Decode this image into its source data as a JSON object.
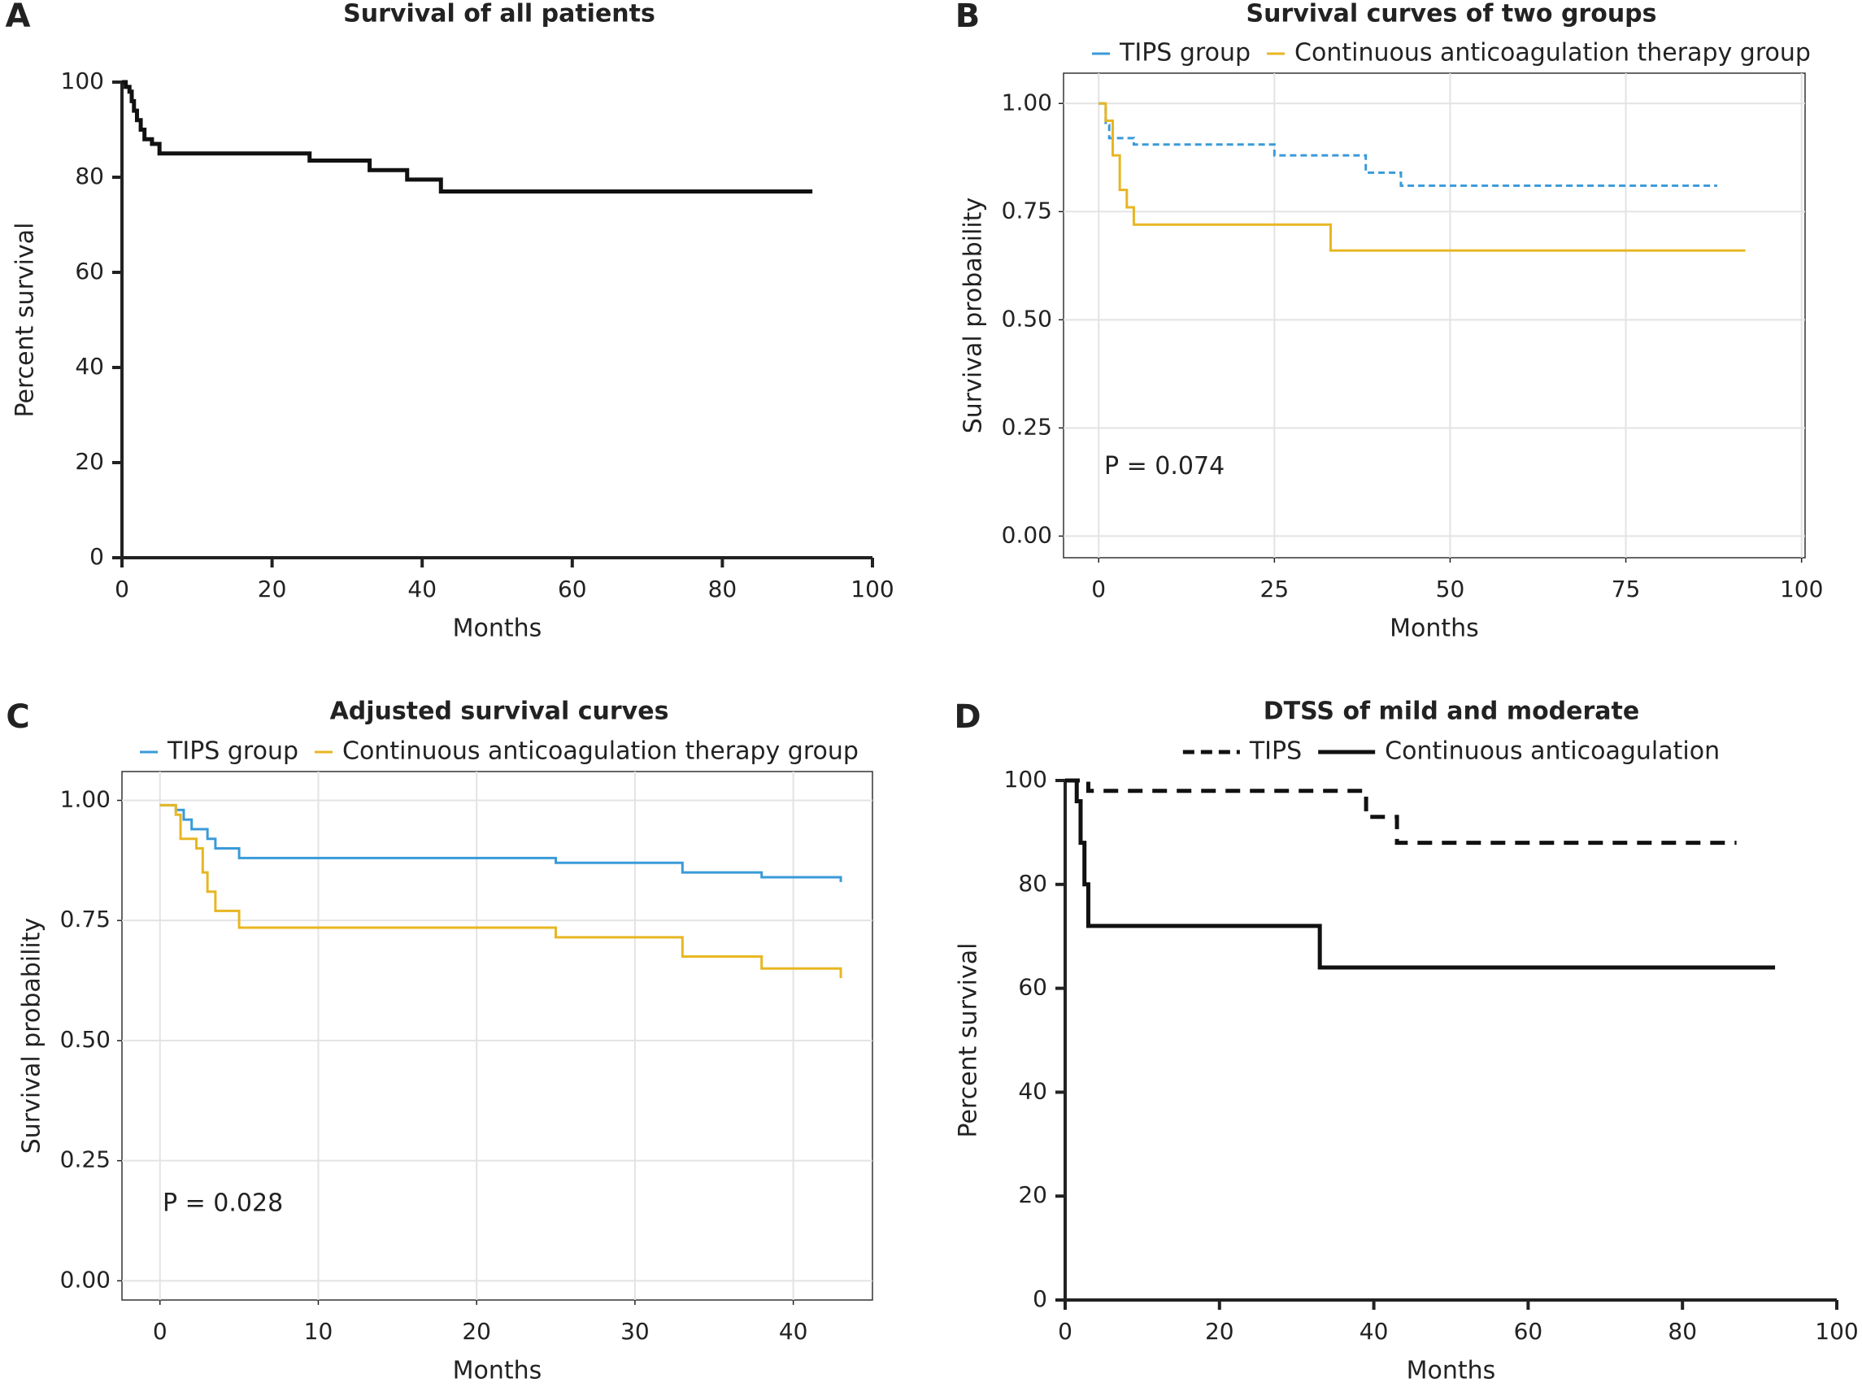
{
  "chart_data": [
    {
      "type": "line",
      "step": true,
      "panel_label": "A",
      "title": "Survival of all patients",
      "xlabel": "Months",
      "ylabel": "Percent survival",
      "frame": false,
      "grid": false,
      "xlim": [
        0,
        100
      ],
      "ylim": [
        0,
        100
      ],
      "xticks": [
        0,
        20,
        40,
        60,
        80,
        100
      ],
      "yticks": [
        0,
        20,
        40,
        60,
        80,
        100
      ],
      "series": [
        {
          "color": "#111111",
          "dash": "solid",
          "x": [
            0,
            0.5,
            1,
            1.3,
            1.6,
            2,
            2.5,
            3,
            4,
            5,
            25,
            33,
            38,
            42.5,
            92
          ],
          "values": [
            100,
            99,
            98,
            96,
            94,
            92,
            90,
            88,
            87,
            85,
            83.5,
            81.5,
            79.5,
            77,
            77
          ]
        }
      ]
    },
    {
      "type": "line",
      "step": true,
      "panel_label": "B",
      "title": "Survival curves of two groups",
      "xlabel": "Months",
      "ylabel": "Survival probability",
      "frame": true,
      "grid": true,
      "annotation": "P = 0.074",
      "xlim": [
        -5,
        100.5
      ],
      "ylim": [
        -0.05,
        1.07
      ],
      "xticks": [
        0,
        25,
        50,
        75,
        100
      ],
      "yticks": [
        {
          "value": 0,
          "label": "0.00"
        },
        {
          "value": 0.25,
          "label": "0.25"
        },
        {
          "value": 0.5,
          "label": "0.50"
        },
        {
          "value": 0.75,
          "label": "0.75"
        },
        {
          "value": 1,
          "label": "1.00"
        }
      ],
      "series": [
        {
          "name": "TIPS group",
          "color": "#3a9ad9",
          "dash": "dashed",
          "x": [
            0,
            1,
            1.5,
            5,
            25,
            38,
            43,
            88
          ],
          "values": [
            1,
            0.95,
            0.92,
            0.905,
            0.88,
            0.84,
            0.81,
            0.81
          ]
        },
        {
          "name": "Continuous anticoagulation therapy group",
          "color": "#e8b622",
          "dash": "solid",
          "x": [
            0,
            1,
            2,
            3,
            4,
            5,
            33,
            92
          ],
          "values": [
            1,
            0.96,
            0.88,
            0.8,
            0.76,
            0.72,
            0.66,
            0.66
          ]
        }
      ]
    },
    {
      "type": "line",
      "step": true,
      "panel_label": "C",
      "title": "Adjusted survival curves",
      "xlabel": "Months",
      "ylabel": "Survival probability",
      "frame": true,
      "grid": true,
      "annotation": "P = 0.028",
      "xlim": [
        -2.4,
        45
      ],
      "ylim": [
        -0.04,
        1.06
      ],
      "xticks": [
        0,
        10,
        20,
        30,
        40
      ],
      "yticks": [
        {
          "value": 0,
          "label": "0.00"
        },
        {
          "value": 0.25,
          "label": "0.25"
        },
        {
          "value": 0.5,
          "label": "0.50"
        },
        {
          "value": 0.75,
          "label": "0.75"
        },
        {
          "value": 1,
          "label": "1.00"
        }
      ],
      "series": [
        {
          "name": "TIPS group",
          "color": "#3a9ad9",
          "dash": "solid",
          "x": [
            0,
            1,
            1.5,
            2,
            3,
            3.5,
            5,
            25,
            33,
            38,
            43
          ],
          "values": [
            0.99,
            0.98,
            0.96,
            0.94,
            0.92,
            0.9,
            0.88,
            0.87,
            0.85,
            0.84,
            0.83
          ]
        },
        {
          "name": "Continuous anticoagulation therapy group",
          "color": "#e8b622",
          "dash": "solid",
          "x": [
            0,
            1,
            1.3,
            2.3,
            2.7,
            3,
            3.5,
            5,
            25,
            33,
            38,
            43
          ],
          "values": [
            0.99,
            0.97,
            0.92,
            0.9,
            0.85,
            0.81,
            0.77,
            0.735,
            0.715,
            0.675,
            0.65,
            0.63
          ]
        }
      ]
    },
    {
      "type": "line",
      "step": true,
      "panel_label": "D",
      "title": "DTSS of mild and moderate",
      "xlabel": "Months",
      "ylabel": "Percent survival",
      "frame": false,
      "grid": false,
      "xlim": [
        0,
        100
      ],
      "ylim": [
        0,
        100
      ],
      "xticks": [
        0,
        20,
        40,
        60,
        80,
        100
      ],
      "yticks": [
        0,
        20,
        40,
        60,
        80,
        100
      ],
      "series": [
        {
          "name": "TIPS",
          "color": "#111111",
          "dash": "dashed",
          "x": [
            0,
            3,
            39,
            43,
            87
          ],
          "values": [
            100,
            98,
            93,
            88,
            88
          ]
        },
        {
          "name": "Continuous anticoagulation",
          "color": "#111111",
          "dash": "solid",
          "x": [
            0,
            1.5,
            2,
            2.5,
            3,
            33,
            92
          ],
          "values": [
            100,
            96,
            88,
            80,
            72,
            64,
            64
          ]
        }
      ]
    }
  ]
}
